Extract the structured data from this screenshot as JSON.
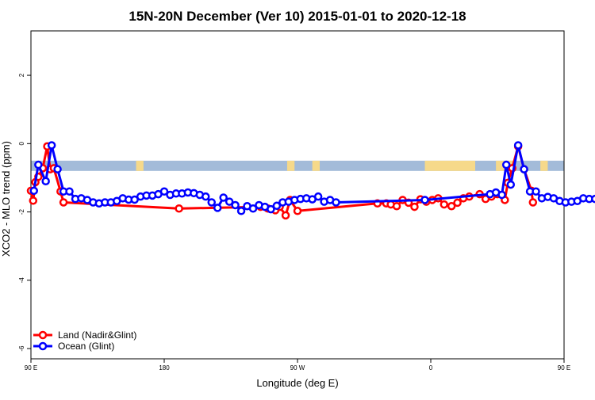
{
  "chart_data": {
    "type": "line",
    "title": "15N-20N December (Ver 10)   2015-01-01 to 2020-12-18",
    "xlabel": "Longitude (deg E)",
    "ylabel": "XCO2 - MLO trend (ppm)",
    "xlim": [
      90,
      450
    ],
    "ylim": [
      -6.3,
      3.3
    ],
    "x_ticks": [
      {
        "value": 90,
        "label": "90 E"
      },
      {
        "value": 180,
        "label": "180"
      },
      {
        "value": 270,
        "label": "90 W"
      },
      {
        "value": 360,
        "label": "0"
      },
      {
        "value": 450,
        "label": "90 E"
      },
      {
        "value": 540,
        "label": "180"
      }
    ],
    "y_ticks": [
      {
        "value": 2,
        "label": "2"
      },
      {
        "value": 0,
        "label": "0"
      },
      {
        "value": -2,
        "label": "-2"
      },
      {
        "value": -4,
        "label": "-4"
      },
      {
        "value": -6,
        "label": "-6"
      }
    ],
    "surface_band": {
      "y_top": -0.5,
      "y_bottom": -0.8,
      "ocean_color": "#a3bbd9",
      "land_color": "#f6d98a",
      "land_segments": [
        [
          161,
          166
        ],
        [
          263,
          268
        ],
        [
          280,
          285
        ],
        [
          356,
          390
        ],
        [
          404,
          416
        ],
        [
          434,
          439
        ]
      ]
    },
    "legend_position": "bottom-left",
    "series": [
      {
        "name": "Land (Nadir&Glint)",
        "color": "#ff0000",
        "points": [
          [
            90,
            -1.38
          ],
          [
            91.5,
            -1.67
          ],
          [
            93,
            -1.13
          ],
          [
            95,
            -0.97
          ],
          [
            98,
            -0.72
          ],
          [
            101,
            -0.08
          ],
          [
            103,
            -0.75
          ],
          [
            105.5,
            -0.72
          ],
          [
            110,
            -1.4
          ],
          [
            112,
            -1.72
          ],
          [
            190,
            -1.9
          ],
          [
            245,
            -1.85
          ],
          [
            250,
            -1.9
          ],
          [
            255,
            -1.95
          ],
          [
            258,
            -1.85
          ],
          [
            262,
            -2.1
          ],
          [
            265,
            -1.65
          ],
          [
            270,
            -1.97
          ],
          [
            324,
            -1.75
          ],
          [
            330,
            -1.75
          ],
          [
            333,
            -1.78
          ],
          [
            337,
            -1.83
          ],
          [
            341,
            -1.65
          ],
          [
            345,
            -1.73
          ],
          [
            349,
            -1.85
          ],
          [
            353,
            -1.63
          ],
          [
            357,
            -1.7
          ],
          [
            361,
            -1.65
          ],
          [
            365,
            -1.6
          ],
          [
            369,
            -1.78
          ],
          [
            374,
            -1.83
          ],
          [
            378,
            -1.73
          ],
          [
            382,
            -1.6
          ],
          [
            386,
            -1.55
          ],
          [
            393,
            -1.48
          ],
          [
            397,
            -1.62
          ],
          [
            401,
            -1.55
          ],
          [
            405,
            -1.48
          ],
          [
            410,
            -1.65
          ],
          [
            412,
            -1.15
          ],
          [
            415,
            -0.72
          ],
          [
            419,
            -0.08
          ],
          [
            423,
            -0.75
          ],
          [
            428,
            -1.38
          ],
          [
            429,
            -1.72
          ]
        ]
      },
      {
        "name": "Ocean (Glint)",
        "color": "#0000ff",
        "points": [
          [
            92,
            -1.38
          ],
          [
            95,
            -0.62
          ],
          [
            100,
            -1.1
          ],
          [
            104,
            -0.05
          ],
          [
            108,
            -0.75
          ],
          [
            112,
            -1.4
          ],
          [
            116,
            -1.4
          ],
          [
            120,
            -1.62
          ],
          [
            124,
            -1.6
          ],
          [
            128,
            -1.65
          ],
          [
            132,
            -1.72
          ],
          [
            136,
            -1.75
          ],
          [
            140,
            -1.72
          ],
          [
            144,
            -1.72
          ],
          [
            148,
            -1.68
          ],
          [
            152,
            -1.6
          ],
          [
            156,
            -1.64
          ],
          [
            160,
            -1.64
          ],
          [
            164,
            -1.55
          ],
          [
            168,
            -1.52
          ],
          [
            172,
            -1.52
          ],
          [
            176,
            -1.48
          ],
          [
            180,
            -1.4
          ],
          [
            184,
            -1.5
          ],
          [
            188,
            -1.46
          ],
          [
            192,
            -1.46
          ],
          [
            196,
            -1.43
          ],
          [
            200,
            -1.45
          ],
          [
            204,
            -1.5
          ],
          [
            208,
            -1.55
          ],
          [
            212,
            -1.72
          ],
          [
            216,
            -1.88
          ],
          [
            220,
            -1.58
          ],
          [
            224,
            -1.7
          ],
          [
            228,
            -1.8
          ],
          [
            232,
            -1.97
          ],
          [
            236,
            -1.83
          ],
          [
            240,
            -1.9
          ],
          [
            244,
            -1.8
          ],
          [
            248,
            -1.85
          ],
          [
            252,
            -1.92
          ],
          [
            256,
            -1.82
          ],
          [
            260,
            -1.72
          ],
          [
            264,
            -1.7
          ],
          [
            268,
            -1.65
          ],
          [
            272,
            -1.62
          ],
          [
            276,
            -1.6
          ],
          [
            280,
            -1.63
          ],
          [
            284,
            -1.55
          ],
          [
            288,
            -1.7
          ],
          [
            292,
            -1.65
          ],
          [
            296,
            -1.72
          ],
          [
            356,
            -1.65
          ],
          [
            400,
            -1.48
          ],
          [
            404,
            -1.43
          ],
          [
            408,
            -1.5
          ],
          [
            411,
            -0.62
          ],
          [
            414,
            -1.2
          ],
          [
            419,
            -0.05
          ],
          [
            423,
            -0.75
          ],
          [
            427,
            -1.4
          ],
          [
            431,
            -1.4
          ],
          [
            435,
            -1.6
          ],
          [
            439,
            -1.56
          ],
          [
            443,
            -1.6
          ],
          [
            447,
            -1.68
          ],
          [
            451,
            -1.72
          ],
          [
            455,
            -1.7
          ],
          [
            459,
            -1.68
          ],
          [
            463,
            -1.6
          ],
          [
            467,
            -1.62
          ],
          [
            471,
            -1.62
          ]
        ]
      }
    ]
  }
}
